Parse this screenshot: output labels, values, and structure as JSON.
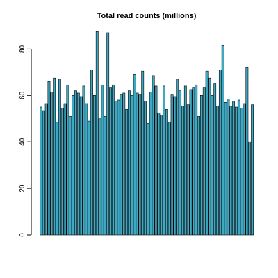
{
  "chart_data": {
    "type": "bar",
    "title": "Total read counts (millions)",
    "xlabel": "",
    "ylabel": "",
    "ylim": [
      0,
      90
    ],
    "yticks": [
      0,
      20,
      40,
      60,
      80
    ],
    "grid": false,
    "bar_color": "#3fa9c4",
    "values": [
      55,
      53.5,
      56.5,
      66,
      61.5,
      67.5,
      48.5,
      67,
      54.5,
      56.5,
      64.5,
      51,
      60,
      62,
      61,
      59.5,
      64,
      56.5,
      49,
      71,
      60,
      87.5,
      50,
      64.5,
      51,
      87,
      63.5,
      64.5,
      57.5,
      58,
      60.5,
      61,
      54,
      62,
      60,
      69,
      61,
      60.5,
      70.5,
      57.5,
      48,
      61.5,
      68.5,
      64,
      52.5,
      51.5,
      64,
      54,
      48.5,
      60.5,
      59.5,
      67,
      62,
      55.5,
      64,
      56,
      62.5,
      63.5,
      64.5,
      51,
      60,
      63.5,
      70.5,
      67.5,
      60,
      65,
      55.5,
      71,
      81.5,
      57,
      58.5,
      55.5,
      57.5,
      55,
      58,
      54.5,
      56.5,
      72,
      40,
      56
    ]
  }
}
